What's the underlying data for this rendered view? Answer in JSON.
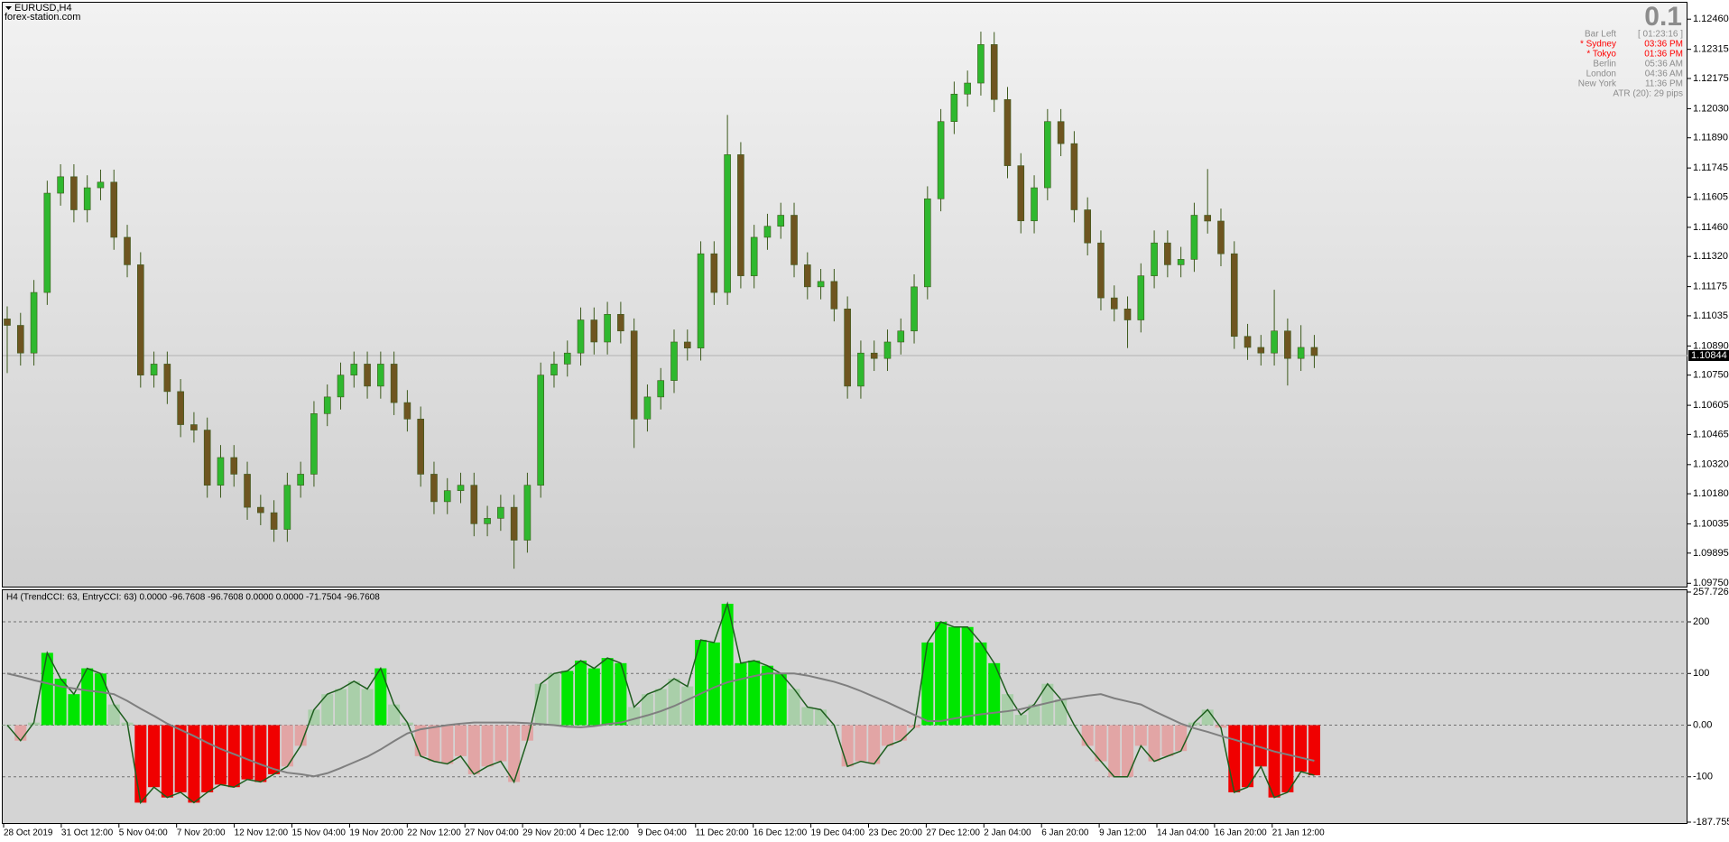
{
  "header": {
    "symbol": "EURUSD,H4",
    "site": "forex-station.com"
  },
  "info_panel": {
    "value": "0.1",
    "rows": [
      {
        "label": "Bar Left",
        "time": "[ 01:23:16 ]",
        "color": "#8c8c8c"
      },
      {
        "label": "* Sydney",
        "time": "03:36 PM",
        "color": "#ff0000"
      },
      {
        "label": "* Tokyo",
        "time": "01:36 PM",
        "color": "#ff0000"
      },
      {
        "label": "Berlin",
        "time": "05:36 AM",
        "color": "#8c8c8c"
      },
      {
        "label": "London",
        "time": "04:36 AM",
        "color": "#8c8c8c"
      },
      {
        "label": "New York",
        "time": "11:36 PM",
        "color": "#8c8c8c"
      }
    ],
    "atr": "ATR (20): 29 pips"
  },
  "chart_data": [
    {
      "type": "candlestick",
      "up_color": "#2fb82f",
      "down_color": "#6e5520",
      "wick_color": "#3d5a1c",
      "open": [
        1.1102,
        1.10989,
        1.10856,
        1.11147,
        1.11624,
        1.11703,
        1.11544,
        1.1165,
        1.11677,
        1.11412,
        1.1128,
        1.1075,
        1.10803,
        1.10671,
        1.10512,
        1.10486,
        1.10221,
        1.10354,
        1.10274,
        1.10115,
        1.10089,
        1.10009,
        1.10221,
        1.10274,
        1.10565,
        1.10645,
        1.1075,
        1.10803,
        1.10697,
        1.10803,
        1.10618,
        1.10539,
        1.10274,
        1.10142,
        1.10195,
        1.10221,
        1.10036,
        1.10062,
        1.10115,
        1.09957,
        1.10221,
        1.1075,
        1.10803,
        1.10856,
        1.11015,
        1.10909,
        1.11042,
        1.10962,
        1.10539,
        1.10645,
        1.10724,
        1.10909,
        1.1088,
        1.11333,
        1.11147,
        1.11809,
        1.11227,
        1.11412,
        1.11465,
        1.11518,
        1.1128,
        1.11174,
        1.112,
        1.11068,
        1.10697,
        1.10856,
        1.1083,
        1.10909,
        1.10962,
        1.11174,
        1.11597,
        1.11968,
        1.121,
        1.12153,
        1.12338,
        1.12074,
        1.11756,
        1.11491,
        1.1165,
        1.11968,
        1.11862,
        1.11544,
        1.11385,
        1.11121,
        1.11068,
        1.11015,
        1.11227,
        1.11385,
        1.1128,
        1.11306,
        1.11518,
        1.1149,
        1.11333,
        1.10936,
        1.10883,
        1.10856,
        1.10962,
        1.1083,
        1.10883
      ],
      "high": [
        1.1108,
        1.11049,
        1.11207,
        1.11684,
        1.11763,
        1.11763,
        1.1171,
        1.11737,
        1.11737,
        1.11472,
        1.1134,
        1.10863,
        1.10863,
        1.10731,
        1.10572,
        1.10546,
        1.10414,
        1.10414,
        1.10334,
        1.10175,
        1.10149,
        1.10281,
        1.10334,
        1.10625,
        1.10705,
        1.1081,
        1.10863,
        1.10863,
        1.10863,
        1.10863,
        1.10678,
        1.10599,
        1.10334,
        1.10255,
        1.10281,
        1.10281,
        1.10122,
        1.10175,
        1.10175,
        1.10281,
        1.1081,
        1.10863,
        1.10916,
        1.11075,
        1.11075,
        1.11102,
        1.11102,
        1.11022,
        1.10705,
        1.10784,
        1.10969,
        1.10969,
        1.11393,
        1.11393,
        1.12,
        1.11869,
        1.11472,
        1.11525,
        1.11578,
        1.11578,
        1.1134,
        1.1126,
        1.1126,
        1.11128,
        1.10916,
        1.10916,
        1.10969,
        1.11022,
        1.11234,
        1.11657,
        1.12028,
        1.1216,
        1.12213,
        1.124,
        1.12398,
        1.12134,
        1.11816,
        1.1171,
        1.12028,
        1.12028,
        1.11922,
        1.11604,
        1.11445,
        1.11181,
        1.11128,
        1.11287,
        1.11445,
        1.11445,
        1.11366,
        1.11578,
        1.1174,
        1.1155,
        1.11393,
        1.10996,
        1.10943,
        1.1116,
        1.11022,
        1.1099,
        1.10943
      ],
      "low": [
        1.1076,
        1.10796,
        1.10796,
        1.11087,
        1.11564,
        1.11484,
        1.11484,
        1.1159,
        1.11352,
        1.1122,
        1.1069,
        1.1069,
        1.10611,
        1.10452,
        1.10426,
        1.10161,
        1.10161,
        1.10214,
        1.10055,
        1.10029,
        1.09949,
        1.09949,
        1.10161,
        1.10214,
        1.10505,
        1.10585,
        1.1069,
        1.10637,
        1.10637,
        1.10558,
        1.10479,
        1.10214,
        1.10082,
        1.10082,
        1.10135,
        1.09976,
        1.09976,
        1.10002,
        1.0982,
        1.09897,
        1.10161,
        1.1069,
        1.10743,
        1.10796,
        1.10849,
        1.10849,
        1.10902,
        1.104,
        1.10479,
        1.10585,
        1.10664,
        1.1082,
        1.1082,
        1.11087,
        1.11087,
        1.11167,
        1.11167,
        1.11352,
        1.11405,
        1.1122,
        1.11114,
        1.11114,
        1.11008,
        1.10637,
        1.10637,
        1.1077,
        1.1077,
        1.10849,
        1.10902,
        1.11114,
        1.11537,
        1.11908,
        1.1204,
        1.12093,
        1.12014,
        1.11696,
        1.11431,
        1.11431,
        1.1159,
        1.11802,
        1.11484,
        1.11325,
        1.11061,
        1.11008,
        1.1088,
        1.10955,
        1.11167,
        1.1122,
        1.1122,
        1.11246,
        1.1143,
        1.11273,
        1.10876,
        1.10823,
        1.10796,
        1.10796,
        1.107,
        1.1077,
        1.10784
      ],
      "close": [
        1.10989,
        1.10856,
        1.11147,
        1.11624,
        1.11703,
        1.11544,
        1.1165,
        1.11677,
        1.11412,
        1.1128,
        1.1075,
        1.10803,
        1.10671,
        1.10512,
        1.10486,
        1.10221,
        1.10354,
        1.10274,
        1.10115,
        1.10089,
        1.10009,
        1.10221,
        1.10274,
        1.10565,
        1.10645,
        1.1075,
        1.10803,
        1.10697,
        1.10803,
        1.10618,
        1.10539,
        1.10274,
        1.10142,
        1.10195,
        1.10221,
        1.10036,
        1.10062,
        1.10115,
        1.09957,
        1.10221,
        1.1075,
        1.10803,
        1.10856,
        1.11015,
        1.10909,
        1.11042,
        1.10962,
        1.10539,
        1.10645,
        1.10724,
        1.10909,
        1.1088,
        1.11333,
        1.11147,
        1.11809,
        1.11227,
        1.11412,
        1.11465,
        1.11518,
        1.1128,
        1.11174,
        1.112,
        1.11068,
        1.10697,
        1.10856,
        1.1083,
        1.10909,
        1.10962,
        1.11174,
        1.11597,
        1.11968,
        1.121,
        1.12153,
        1.12338,
        1.12074,
        1.11756,
        1.11491,
        1.1165,
        1.11968,
        1.11862,
        1.11544,
        1.11385,
        1.11121,
        1.11068,
        1.11015,
        1.11227,
        1.11385,
        1.1128,
        1.11306,
        1.11518,
        1.1149,
        1.11333,
        1.10936,
        1.10883,
        1.10856,
        1.10962,
        1.1083,
        1.10883,
        1.10844
      ],
      "current_price": 1.10844,
      "ylim": [
        1.09734,
        1.12539
      ],
      "yticks": [
        {
          "value": 1.1246,
          "label": "1.12460"
        },
        1.12315,
        1.12175,
        {
          "value": 1.1203,
          "label": "1.12030"
        },
        {
          "value": 1.1189,
          "label": "1.11890"
        },
        1.11745,
        1.11605,
        {
          "value": 1.1146,
          "label": "1.11460"
        },
        {
          "value": 1.1132,
          "label": "1.11320"
        },
        1.11175,
        1.11035,
        {
          "value": 1.1089,
          "label": "1.10890"
        },
        {
          "value": 1.1075,
          "label": "1.10750"
        },
        1.10605,
        1.10465,
        {
          "value": 1.1032,
          "label": "1.10320"
        },
        {
          "value": 1.1018,
          "label": "1.10180"
        },
        1.10035,
        1.09895,
        {
          "value": 1.0975,
          "label": "1.09750"
        }
      ]
    },
    {
      "type": "cci",
      "title": "H4 (TrendCCI: 63, EntryCCI: 63)  0.0000 -96.7608 -96.7608 0.0000 0.0000 -71.7504 -96.7608",
      "line_color": "#1e5e1e",
      "series": [
        {
          "values": [
            0,
            -30,
            5,
            140,
            90,
            60,
            110,
            100,
            40,
            5,
            -150,
            -120,
            -140,
            -130,
            -150,
            -130,
            -115,
            -120,
            -105,
            -110,
            -95,
            -80,
            -40,
            30,
            60,
            70,
            85,
            70,
            110,
            40,
            5,
            -60,
            -70,
            -75,
            -60,
            -95,
            -80,
            -70,
            -110,
            -30,
            80,
            100,
            105,
            125,
            110,
            130,
            120,
            35,
            60,
            70,
            90,
            75,
            165,
            160,
            235,
            120,
            125,
            115,
            100,
            70,
            35,
            30,
            0,
            -80,
            -70,
            -75,
            -40,
            -30,
            -5,
            160,
            200,
            190,
            190,
            160,
            120,
            60,
            20,
            40,
            80,
            50,
            0,
            -40,
            -70,
            -100,
            -100,
            -40,
            -70,
            -60,
            -50,
            5,
            30,
            -5,
            -130,
            -120,
            -80,
            -140,
            -130,
            -90,
            -97
          ],
          "colors": [
            "#a9cfa9",
            "#e2a5a5",
            "#a9cfa9",
            "#00e600",
            "#00e600",
            "#00e600",
            "#00e600",
            "#00e600",
            "#a9cfa9",
            "#a9cfa9",
            "#f00000",
            "#f00000",
            "#f00000",
            "#f00000",
            "#f00000",
            "#f00000",
            "#f00000",
            "#f00000",
            "#f00000",
            "#f00000",
            "#f00000",
            "#e2a5a5",
            "#e2a5a5",
            "#a9cfa9",
            "#a9cfa9",
            "#a9cfa9",
            "#a9cfa9",
            "#a9cfa9",
            "#00e600",
            "#a9cfa9",
            "#a9cfa9",
            "#e2a5a5",
            "#e2a5a5",
            "#e2a5a5",
            "#e2a5a5",
            "#e2a5a5",
            "#e2a5a5",
            "#e2a5a5",
            "#e2a5a5",
            "#e2a5a5",
            "#a9cfa9",
            "#a9cfa9",
            "#00e600",
            "#00e600",
            "#00e600",
            "#00e600",
            "#00e600",
            "#a9cfa9",
            "#a9cfa9",
            "#a9cfa9",
            "#a9cfa9",
            "#a9cfa9",
            "#00e600",
            "#00e600",
            "#00e600",
            "#00e600",
            "#00e600",
            "#00e600",
            "#00e600",
            "#a9cfa9",
            "#a9cfa9",
            "#a9cfa9",
            "#a9cfa9",
            "#e2a5a5",
            "#e2a5a5",
            "#e2a5a5",
            "#e2a5a5",
            "#e2a5a5",
            "#e2a5a5",
            "#00e600",
            "#00e600",
            "#00e600",
            "#00e600",
            "#00e600",
            "#00e600",
            "#a9cfa9",
            "#a9cfa9",
            "#a9cfa9",
            "#a9cfa9",
            "#a9cfa9",
            "#a9cfa9",
            "#e2a5a5",
            "#e2a5a5",
            "#e2a5a5",
            "#e2a5a5",
            "#e2a5a5",
            "#e2a5a5",
            "#e2a5a5",
            "#e2a5a5",
            "#a9cfa9",
            "#a9cfa9",
            "#e2a5a5",
            "#f00000",
            "#f00000",
            "#f00000",
            "#f00000",
            "#f00000",
            "#f00000",
            "#f00000"
          ]
        },
        {
          "color": "#7f7f7f",
          "values": [
            100,
            94,
            87,
            81,
            75,
            71,
            67,
            64,
            60,
            47,
            32,
            18,
            3,
            -9,
            -21,
            -34,
            -46,
            -56,
            -66,
            -76,
            -85,
            -92,
            -95,
            -99,
            -93,
            -83,
            -72,
            -61,
            -47,
            -31,
            -16,
            -8,
            -4,
            0,
            3,
            5,
            5,
            5,
            5,
            4,
            2,
            0,
            -3,
            -4,
            -2,
            2,
            5,
            12,
            19,
            27,
            37,
            49,
            61,
            73,
            83,
            89,
            95,
            100,
            100,
            100,
            96,
            90,
            84,
            76,
            66,
            55,
            44,
            32,
            20,
            8,
            8,
            13,
            17,
            21,
            24,
            27,
            31,
            37,
            43,
            49,
            53,
            57,
            60,
            52,
            46,
            40,
            27,
            15,
            3,
            -6,
            -13,
            -21,
            -28,
            -36,
            -43,
            -51,
            -57,
            -63,
            -69
          ]
        }
      ],
      "ylim": [
        -187.7557,
        257.7267
      ],
      "yticks": [
        257.7267,
        200,
        100,
        {
          "value": 0,
          "label": "0.00"
        },
        -100,
        -187.7557
      ],
      "grid": true,
      "x_labels": [
        "28 Oct 2019",
        "31 Oct 12:00",
        "5 Nov 04:00",
        "7 Nov 20:00",
        "12 Nov 12:00",
        "15 Nov 04:00",
        "19 Nov 20:00",
        "22 Nov 12:00",
        "27 Nov 04:00",
        "29 Nov 20:00",
        "4 Dec 12:00",
        "9 Dec 04:00",
        "11 Dec 20:00",
        "16 Dec 12:00",
        "19 Dec 04:00",
        "23 Dec 20:00",
        "27 Dec 12:00",
        "2 Jan 04:00",
        "6 Jan 20:00",
        "9 Jan 12:00",
        "14 Jan 04:00",
        "16 Jan 20:00",
        "21 Jan 12:00"
      ]
    }
  ]
}
